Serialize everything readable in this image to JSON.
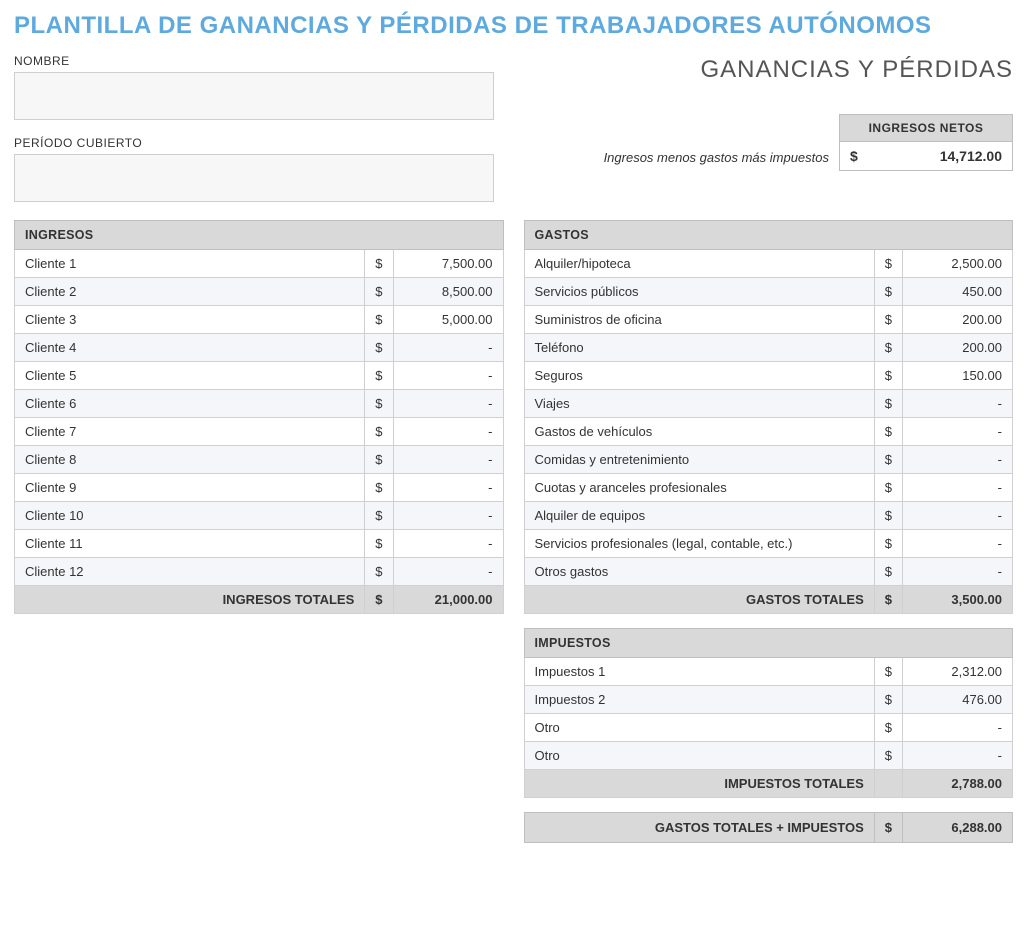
{
  "colors": {
    "title": "#5ea9dd",
    "header_bg": "#d9d9d9",
    "alt_row_bg": "#f4f6f9",
    "border": "#bfbfbf",
    "input_bg": "#f7f7f7"
  },
  "title": "PLANTILLA DE GANANCIAS Y PÉRDIDAS DE TRABAJADORES AUTÓNOMOS",
  "subtitle": "GANANCIAS Y PÉRDIDAS",
  "meta": {
    "name_label": "NOMBRE",
    "name_value": "",
    "period_label": "PERÍODO CUBIERTO",
    "period_value": ""
  },
  "net": {
    "header": "INGRESOS NETOS",
    "caption": "Ingresos menos gastos más impuestos",
    "currency": "$",
    "value": "14,712.00"
  },
  "income": {
    "header": "INGRESOS",
    "currency": "$",
    "rows": [
      {
        "label": "Cliente 1",
        "value": "7,500.00"
      },
      {
        "label": "Cliente 2",
        "value": "8,500.00"
      },
      {
        "label": "Cliente 3",
        "value": "5,000.00"
      },
      {
        "label": "Cliente 4",
        "value": "-"
      },
      {
        "label": "Cliente 5",
        "value": "-"
      },
      {
        "label": "Cliente 6",
        "value": "-"
      },
      {
        "label": "Cliente 7",
        "value": "-"
      },
      {
        "label": "Cliente 8",
        "value": "-"
      },
      {
        "label": "Cliente 9",
        "value": "-"
      },
      {
        "label": "Cliente 10",
        "value": "-"
      },
      {
        "label": "Cliente 11",
        "value": "-"
      },
      {
        "label": "Cliente 12",
        "value": "-"
      }
    ],
    "total_label": "INGRESOS TOTALES",
    "total_value": "21,000.00"
  },
  "expenses": {
    "header": "GASTOS",
    "currency": "$",
    "rows": [
      {
        "label": "Alquiler/hipoteca",
        "value": "2,500.00"
      },
      {
        "label": "Servicios públicos",
        "value": "450.00"
      },
      {
        "label": "Suministros de oficina",
        "value": "200.00"
      },
      {
        "label": "Teléfono",
        "value": "200.00"
      },
      {
        "label": "Seguros",
        "value": "150.00"
      },
      {
        "label": "Viajes",
        "value": "-"
      },
      {
        "label": "Gastos de vehículos",
        "value": "-"
      },
      {
        "label": "Comidas y entretenimiento",
        "value": "-"
      },
      {
        "label": "Cuotas y aranceles profesionales",
        "value": "-"
      },
      {
        "label": "Alquiler de equipos",
        "value": "-"
      },
      {
        "label": "Servicios profesionales (legal, contable, etc.)",
        "value": "-"
      },
      {
        "label": "Otros gastos",
        "value": "-"
      }
    ],
    "total_label": "GASTOS TOTALES",
    "total_value": "3,500.00"
  },
  "taxes": {
    "header": "IMPUESTOS",
    "currency": "$",
    "rows": [
      {
        "label": "Impuestos 1",
        "value": "2,312.00"
      },
      {
        "label": "Impuestos 2",
        "value": "476.00"
      },
      {
        "label": "Otro",
        "value": "-"
      },
      {
        "label": "Otro",
        "value": "-"
      }
    ],
    "total_label": "IMPUESTOS TOTALES",
    "total_value": "2,788.00"
  },
  "grand": {
    "label": "GASTOS TOTALES + IMPUESTOS",
    "currency": "$",
    "value": "6,288.00"
  }
}
